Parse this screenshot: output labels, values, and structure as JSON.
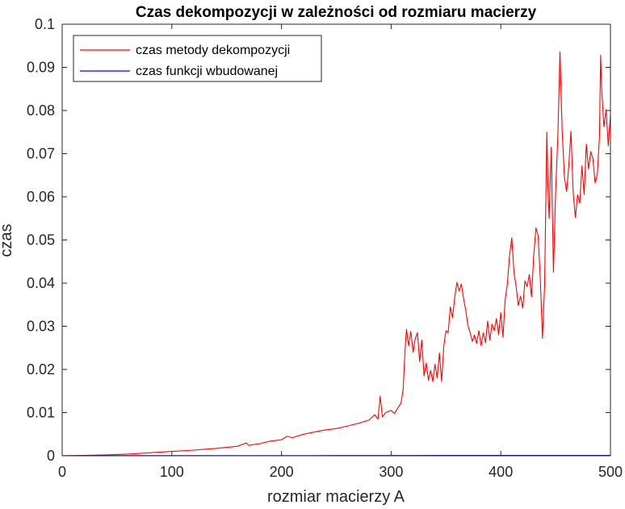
{
  "chart_data": {
    "type": "line",
    "title": "Czas dekompozycji w zależności od rozmiaru macierzy",
    "xlabel": "rozmiar macierzy A",
    "ylabel": "czas",
    "xlim": [
      0,
      500
    ],
    "ylim": [
      0,
      0.1
    ],
    "xticks": [
      "0",
      "100",
      "200",
      "300",
      "400",
      "500"
    ],
    "yticks": [
      "0",
      "0.01",
      "0.02",
      "0.03",
      "0.04",
      "0.05",
      "0.06",
      "0.07",
      "0.08",
      "0.09",
      "0.1"
    ],
    "grid": false,
    "legend_position": "top-left",
    "series": [
      {
        "name": "czas metody dekompozycji",
        "color": "#ff0000",
        "points": [
          [
            0,
            0
          ],
          [
            20,
            0.0001
          ],
          [
            40,
            0.0002
          ],
          [
            60,
            0.0004
          ],
          [
            80,
            0.0007
          ],
          [
            100,
            0.001
          ],
          [
            120,
            0.0013
          ],
          [
            140,
            0.0017
          ],
          [
            160,
            0.0022
          ],
          [
            168,
            0.003
          ],
          [
            170,
            0.0024
          ],
          [
            180,
            0.0028
          ],
          [
            190,
            0.0034
          ],
          [
            200,
            0.0037
          ],
          [
            205,
            0.0045
          ],
          [
            210,
            0.0042
          ],
          [
            220,
            0.005
          ],
          [
            230,
            0.0055
          ],
          [
            240,
            0.006
          ],
          [
            250,
            0.0063
          ],
          [
            260,
            0.0069
          ],
          [
            270,
            0.0075
          ],
          [
            280,
            0.0083
          ],
          [
            285,
            0.0095
          ],
          [
            288,
            0.0085
          ],
          [
            290,
            0.0138
          ],
          [
            292,
            0.009
          ],
          [
            295,
            0.01
          ],
          [
            300,
            0.0105
          ],
          [
            303,
            0.0098
          ],
          [
            306,
            0.011
          ],
          [
            309,
            0.0122
          ],
          [
            311,
            0.0155
          ],
          [
            312,
            0.021
          ],
          [
            313,
            0.026
          ],
          [
            314,
            0.0293
          ],
          [
            316,
            0.0255
          ],
          [
            318,
            0.0288
          ],
          [
            320,
            0.024
          ],
          [
            322,
            0.0272
          ],
          [
            324,
            0.0285
          ],
          [
            326,
            0.0218
          ],
          [
            328,
            0.0268
          ],
          [
            330,
            0.0185
          ],
          [
            332,
            0.0215
          ],
          [
            334,
            0.0175
          ],
          [
            336,
            0.0198
          ],
          [
            338,
            0.0172
          ],
          [
            340,
            0.0212
          ],
          [
            342,
            0.018
          ],
          [
            344,
            0.0238
          ],
          [
            346,
            0.0172
          ],
          [
            348,
            0.0255
          ],
          [
            350,
            0.029
          ],
          [
            352,
            0.0285
          ],
          [
            354,
            0.0345
          ],
          [
            356,
            0.032
          ],
          [
            358,
            0.0368
          ],
          [
            360,
            0.0402
          ],
          [
            362,
            0.0382
          ],
          [
            364,
            0.0398
          ],
          [
            366,
            0.0365
          ],
          [
            368,
            0.0338
          ],
          [
            370,
            0.0302
          ],
          [
            372,
            0.0285
          ],
          [
            374,
            0.0265
          ],
          [
            376,
            0.028
          ],
          [
            378,
            0.026
          ],
          [
            380,
            0.029
          ],
          [
            382,
            0.0255
          ],
          [
            384,
            0.0285
          ],
          [
            386,
            0.0262
          ],
          [
            388,
            0.0312
          ],
          [
            390,
            0.0268
          ],
          [
            392,
            0.0305
          ],
          [
            394,
            0.029
          ],
          [
            396,
            0.0318
          ],
          [
            398,
            0.028
          ],
          [
            400,
            0.0332
          ],
          [
            402,
            0.0275
          ],
          [
            404,
            0.0362
          ],
          [
            406,
            0.0398
          ],
          [
            408,
            0.0465
          ],
          [
            410,
            0.0505
          ],
          [
            412,
            0.0425
          ],
          [
            414,
            0.0392
          ],
          [
            416,
            0.0348
          ],
          [
            418,
            0.037
          ],
          [
            420,
            0.0342
          ],
          [
            422,
            0.0405
          ],
          [
            424,
            0.0392
          ],
          [
            426,
            0.042
          ],
          [
            428,
            0.0368
          ],
          [
            430,
            0.0462
          ],
          [
            432,
            0.0528
          ],
          [
            434,
            0.051
          ],
          [
            436,
            0.0412
          ],
          [
            438,
            0.0272
          ],
          [
            440,
            0.0398
          ],
          [
            442,
            0.075
          ],
          [
            443,
            0.062
          ],
          [
            444,
            0.055
          ],
          [
            446,
            0.0715
          ],
          [
            448,
            0.0425
          ],
          [
            450,
            0.0612
          ],
          [
            452,
            0.0738
          ],
          [
            454,
            0.0936
          ],
          [
            456,
            0.0752
          ],
          [
            458,
            0.0645
          ],
          [
            460,
            0.0612
          ],
          [
            462,
            0.0672
          ],
          [
            464,
            0.0752
          ],
          [
            466,
            0.0612
          ],
          [
            468,
            0.0552
          ],
          [
            470,
            0.0605
          ],
          [
            472,
            0.0585
          ],
          [
            474,
            0.0672
          ],
          [
            476,
            0.0605
          ],
          [
            478,
            0.0722
          ],
          [
            480,
            0.0665
          ],
          [
            482,
            0.0705
          ],
          [
            484,
            0.0688
          ],
          [
            486,
            0.0632
          ],
          [
            488,
            0.0652
          ],
          [
            490,
            0.074
          ],
          [
            491,
            0.0928
          ],
          [
            492,
            0.085
          ],
          [
            494,
            0.0762
          ],
          [
            496,
            0.0802
          ],
          [
            498,
            0.0718
          ],
          [
            500,
            0.079
          ]
        ]
      },
      {
        "name": "czas funkcji wbudowanej",
        "color": "#0000ff",
        "points": [
          [
            0,
            2e-05
          ],
          [
            50,
            3e-05
          ],
          [
            100,
            3e-05
          ],
          [
            150,
            4e-05
          ],
          [
            200,
            4e-05
          ],
          [
            250,
            5e-05
          ],
          [
            300,
            6e-05
          ],
          [
            350,
            7e-05
          ],
          [
            400,
            8e-05
          ],
          [
            450,
            9e-05
          ],
          [
            500,
            0.0001
          ]
        ]
      }
    ]
  }
}
